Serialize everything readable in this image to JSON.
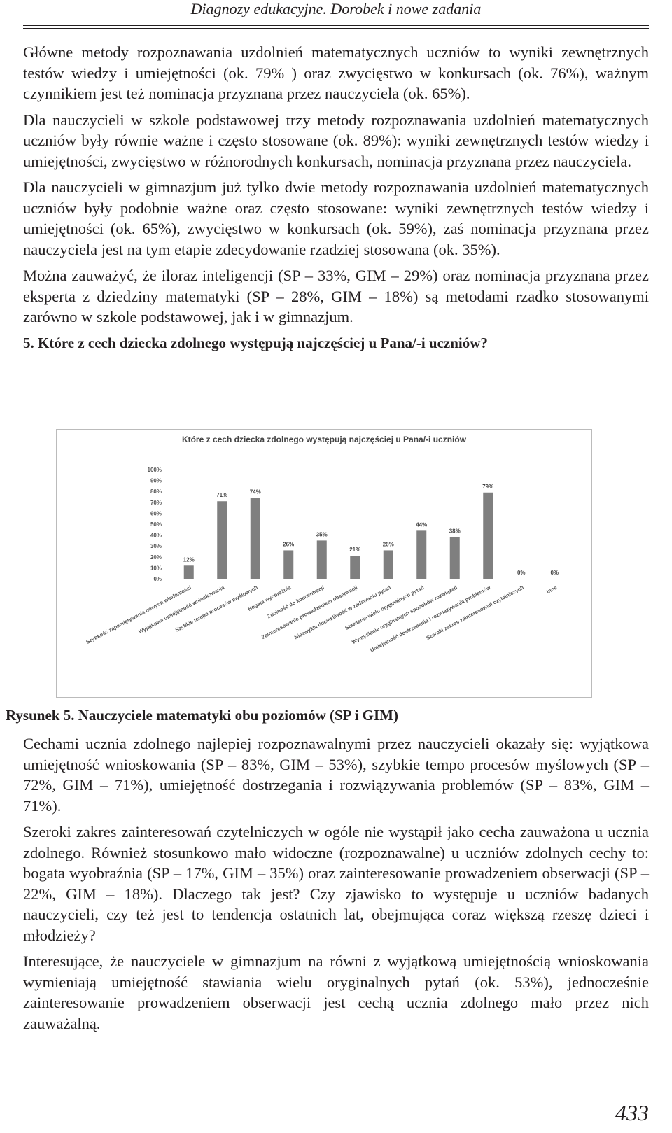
{
  "header": {
    "title": "Diagnozy edukacyjne. Dorobek i nowe zadania"
  },
  "body_top": [
    "Główne metody rozpoznawania uzdolnień matematycznych uczniów to wyniki zewnętrznych testów wiedzy i umiejętności (ok. 79% ) oraz zwycięstwo w konkursach (ok. 76%), ważnym czynnikiem jest też nominacja przyznana przez nauczyciela (ok. 65%).",
    "Dla nauczycieli w szkole podstawowej trzy metody rozpoznawania uzdolnień matematycznych uczniów były równie ważne i często stosowane (ok. 89%): wyniki zewnętrznych testów wiedzy i umiejętności, zwycięstwo w różnorodnych konkursach, nominacja przyznana przez nauczyciela.",
    "Dla nauczycieli w gimnazjum już tylko dwie metody rozpoznawania uzdolnień matematycznych uczniów były podobnie ważne oraz często stosowane: wyniki zewnętrznych testów wiedzy i umiejętności (ok. 65%), zwycięstwo w konkursach (ok. 59%), zaś nominacja przyznana przez nauczyciela jest na tym etapie zdecydowanie rzadziej stosowana (ok. 35%).",
    "Można zauważyć, że iloraz inteligencji (SP – 33%, GIM – 29%) oraz nominacja przyznana przez eksperta z dziedziny matematyki (SP – 28%, GIM – 18%) są metodami rzadko stosowanymi zarówno w szkole podstawowej, jak i w gimnazjum."
  ],
  "question": "5. Które z cech dziecka zdolnego występują najczęściej u Pana/-i uczniów?",
  "chart_data": {
    "type": "bar",
    "title": "Które z cech dziecka zdolnego występują najczęściej u Pana/-i uczniów",
    "categories": [
      "Szybkość zapamiętywania nowych wiadomości",
      "Wyjątkowa umiejętność wnioskowania",
      "Szybkie tempo procesów myślowych",
      "Bogata wyobraźnia",
      "Zdolność do koncentracji",
      "Zainteresowanie prowadzeniem obserwacji",
      "Niezwykła dociekliwość w zadawaniu pytań",
      "Stawianie wielu oryginalnych pytań",
      "Wymyślanie oryginalnych sposobów rozwiązań",
      "Umiejętność dostrzegania i rozwiązywania problemów",
      "Szeroki zakres zainteresowań czytelniczych",
      "Inne"
    ],
    "values": [
      12,
      71,
      74,
      26,
      35,
      21,
      26,
      44,
      38,
      79,
      0,
      0
    ],
    "value_labels": [
      "12%",
      "71%",
      "74%",
      "26%",
      "35%",
      "21%",
      "26%",
      "44%",
      "38%",
      "79%",
      "0%",
      "0%"
    ],
    "color": "#7f7f7f",
    "ylim": [
      0,
      100
    ],
    "yticks": [
      {
        "value": 0,
        "label": "0%"
      },
      {
        "value": 10,
        "label": "10%"
      },
      {
        "value": 20,
        "label": "20%"
      },
      {
        "value": 30,
        "label": "30%"
      },
      {
        "value": 40,
        "label": "40%"
      },
      {
        "value": 50,
        "label": "50%"
      },
      {
        "value": 60,
        "label": "60%"
      },
      {
        "value": 70,
        "label": "70%"
      },
      {
        "value": 80,
        "label": "80%"
      },
      {
        "value": 90,
        "label": "90%"
      },
      {
        "value": 100,
        "label": "100%"
      }
    ]
  },
  "caption": "Rysunek 5. Nauczyciele matematyki obu poziomów (SP i GIM)",
  "body_bottom": [
    "Cechami ucznia zdolnego najlepiej rozpoznawalnymi przez nauczycieli okazały się: wyjątkowa umiejętność wnioskowania (SP – 83%, GIM – 53%), szybkie tempo procesów myślowych (SP – 72%, GIM – 71%), umiejętność dostrzegania i rozwiązywania problemów (SP – 83%, GIM – 71%).",
    "Szeroki zakres zainteresowań czytelniczych w ogóle nie wystąpił jako cecha zauważona u ucznia zdolnego. Również stosunkowo mało widoczne (rozpoznawalne) u uczniów zdolnych cechy to: bogata wyobraźnia (SP – 17%, GIM – 35%) oraz zainteresowanie prowadzeniem obserwacji (SP – 22%, GIM – 18%). Dlaczego tak jest? Czy zjawisko to występuje u uczniów badanych nauczycieli, czy też jest to tendencja ostatnich lat, obejmująca coraz większą rzeszę dzieci i młodzieży?",
    "Interesujące, że nauczyciele w gimnazjum na równi z wyjątkową umiejętnością wnioskowania wymieniają umiejętność stawiania wielu oryginalnych pytań (ok. 53%), jednocześnie zainteresowanie prowadzeniem obserwacji jest cechą ucznia zdolnego mało przez nich zauważalną."
  ],
  "page_number": "433"
}
